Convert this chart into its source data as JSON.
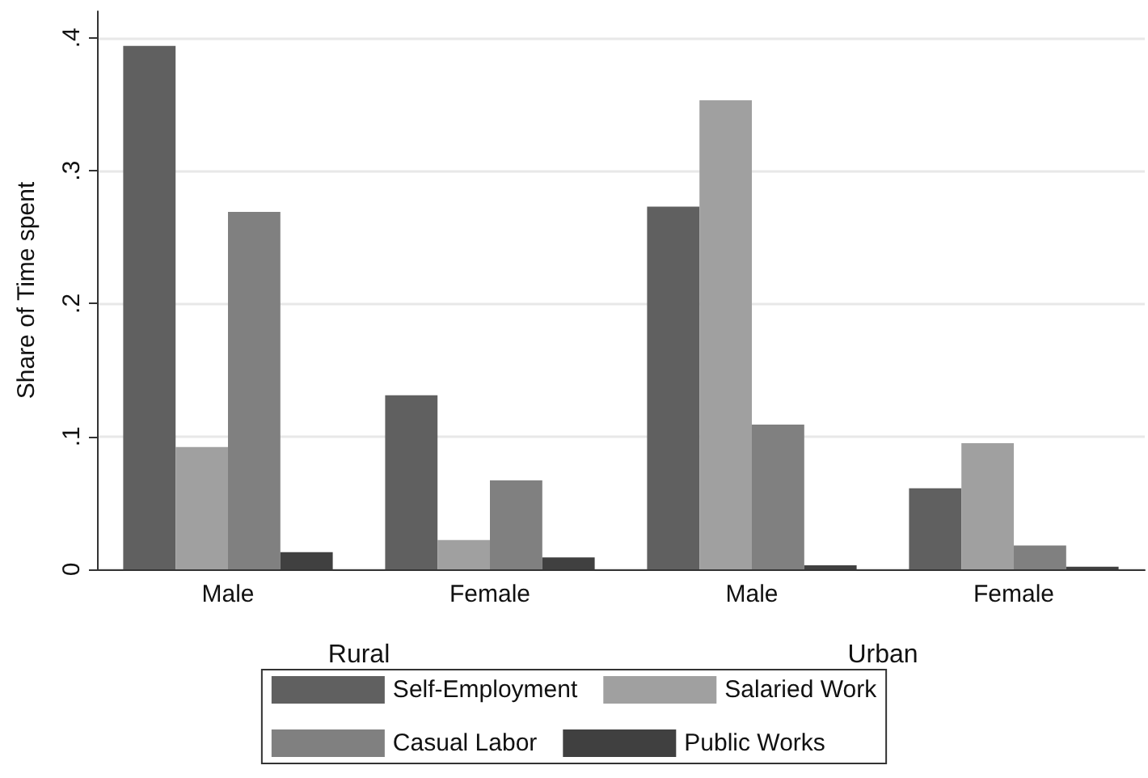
{
  "chart_data": {
    "type": "bar",
    "ylabel": "Share of Time spent",
    "categories": [
      "Male",
      "Female",
      "Male",
      "Female"
    ],
    "annotations": [
      "Rural",
      "Urban"
    ],
    "series": [
      {
        "name": "Self-Employment",
        "color": "#606060",
        "values": [
          0.394,
          0.131,
          0.273,
          0.061
        ]
      },
      {
        "name": "Salaried Work",
        "color": "#a0a0a0",
        "values": [
          0.092,
          0.022,
          0.353,
          0.095
        ]
      },
      {
        "name": "Casual Labor",
        "color": "#808080",
        "values": [
          0.269,
          0.067,
          0.109,
          0.018
        ]
      },
      {
        "name": "Public Works",
        "color": "#404040",
        "values": [
          0.013,
          0.009,
          0.003,
          0.002
        ]
      }
    ],
    "ylim": [
      0,
      0.42
    ],
    "yticks": [
      {
        "value": 0,
        "label": "0"
      },
      {
        "value": 0.1,
        "label": ".1"
      },
      {
        "value": 0.2,
        "label": ".2"
      },
      {
        "value": 0.3,
        "label": ".3"
      },
      {
        "value": 0.4,
        "label": ".4"
      }
    ],
    "grid": "y",
    "legend": "bottom"
  }
}
